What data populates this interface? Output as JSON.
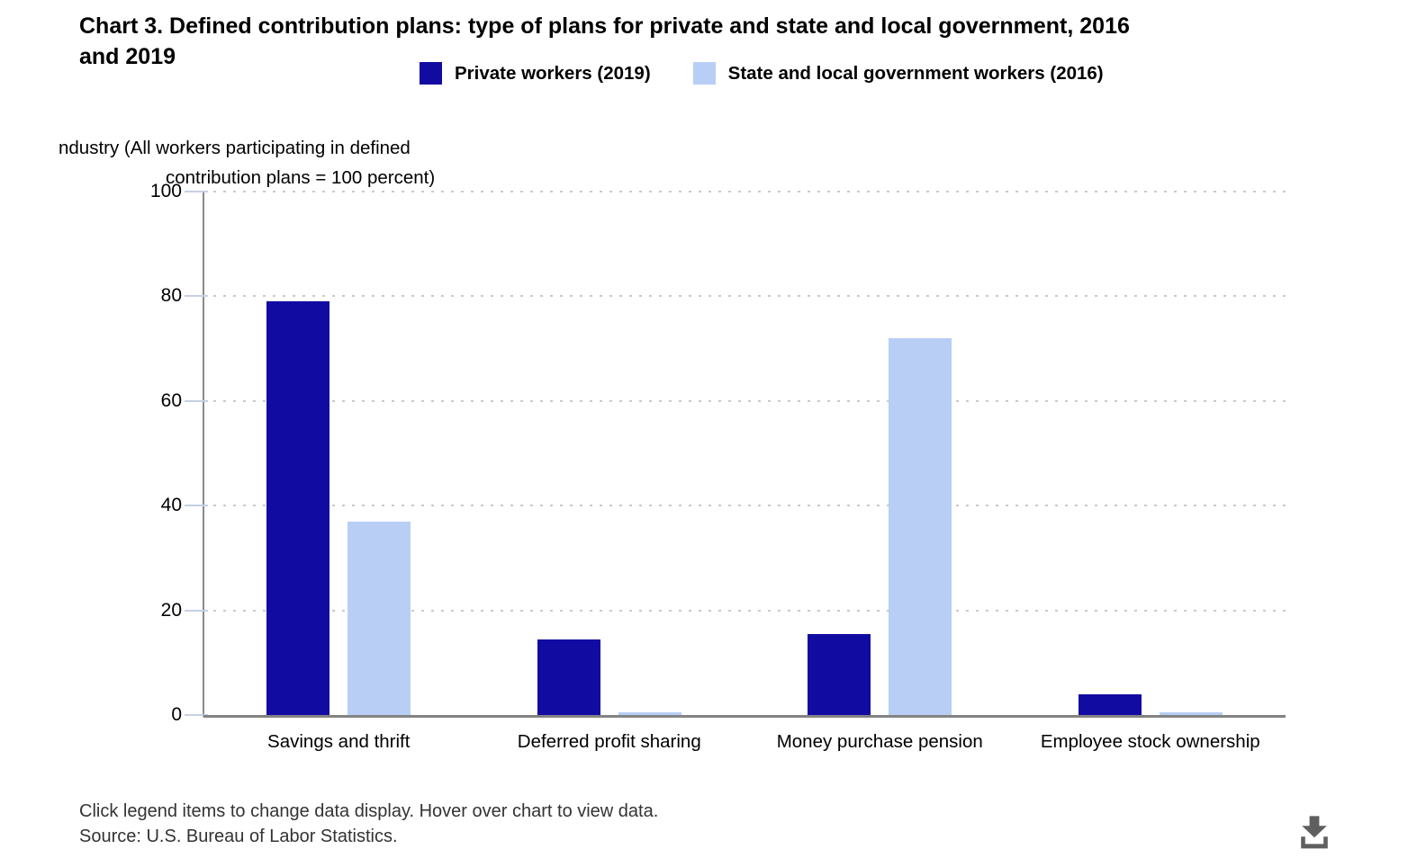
{
  "title": {
    "line1": "Chart 3. Defined contribution plans: type of plans for private and state and local government, 2016",
    "line2": "and 2019"
  },
  "legend": {
    "items": [
      {
        "label": "Private workers (2019)",
        "color": "#120BA2"
      },
      {
        "label": "State and local government workers (2016)",
        "color": "#B8CEF5"
      }
    ]
  },
  "y_axis_title": {
    "line1": "ndustry (All workers participating in defined",
    "line2": "contribution plans = 100 percent)"
  },
  "chart_data": {
    "type": "bar",
    "title": "Chart 3. Defined contribution plans: type of plans for private and state and local government, 2016 and 2019",
    "categories": [
      "Savings and thrift",
      "Deferred profit sharing",
      "Money purchase pension",
      "Employee stock ownership"
    ],
    "series": [
      {
        "name": "Private workers (2019)",
        "color": "#120BA2",
        "values": [
          79,
          14.5,
          15.5,
          4
        ]
      },
      {
        "name": "State and local government workers (2016)",
        "color": "#B8CEF5",
        "values": [
          37,
          0.5,
          72,
          0.5
        ]
      }
    ],
    "xlabel": "",
    "ylabel": "ndustry (All workers participating in defined contribution plans = 100 percent)",
    "ylim": [
      0,
      100
    ],
    "yticks": [
      0,
      20,
      40,
      60,
      80,
      100
    ],
    "grid": "horizontal-dotted",
    "legend_position": "top",
    "style": {
      "gridline_color": "#c9c9c9",
      "axis_line_color": "#8a8a8a",
      "baseline_color": "#838383",
      "tick_color": "#c5d0e2"
    }
  },
  "footer": {
    "note": "Click legend items to change data display. Hover over chart to view data.",
    "source": "Source: U.S. Bureau of Labor Statistics."
  },
  "icons": {
    "download": "download-arrow-into-tray"
  }
}
